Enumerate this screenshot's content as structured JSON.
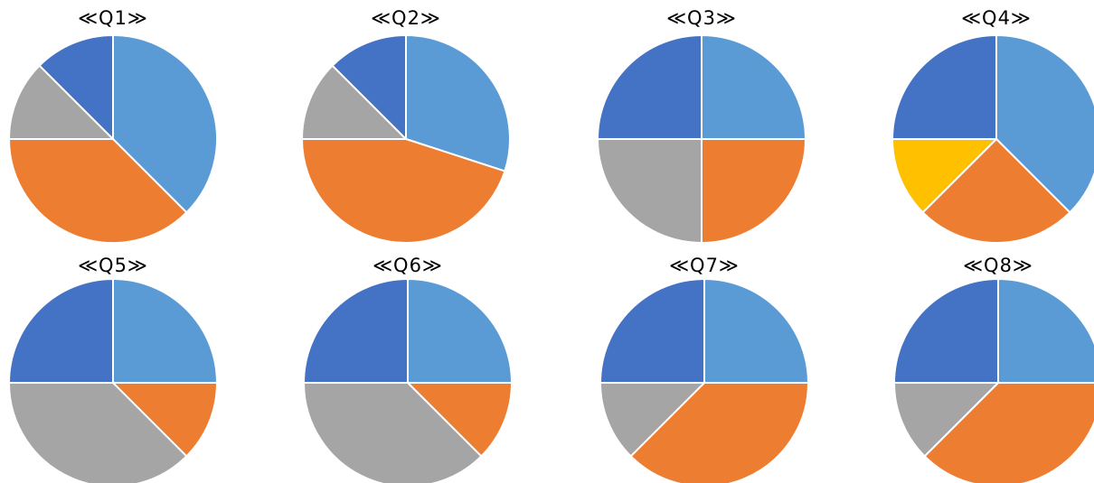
{
  "colors": {
    "blue_light": "#5B9BD5",
    "orange": "#ED7D31",
    "gray": "#A5A5A5",
    "yellow": "#FFC000",
    "blue_dark": "#4472C4",
    "slice_border": "#ffffff"
  },
  "chart_data": [
    {
      "type": "pie",
      "title": "≪Q1≫",
      "series": [
        {
          "values": [
            0.375,
            0.375,
            0.125,
            0,
            0.125
          ],
          "colors": [
            "#5B9BD5",
            "#ED7D31",
            "#A5A5A5",
            "#FFC000",
            "#4472C4"
          ]
        }
      ]
    },
    {
      "type": "pie",
      "title": "≪Q2≫",
      "series": [
        {
          "values": [
            0.3,
            0.45,
            0.125,
            0,
            0.125
          ],
          "colors": [
            "#5B9BD5",
            "#ED7D31",
            "#A5A5A5",
            "#FFC000",
            "#4472C4"
          ]
        }
      ]
    },
    {
      "type": "pie",
      "title": "≪Q3≫",
      "series": [
        {
          "values": [
            0.25,
            0.25,
            0.25,
            0,
            0.25
          ],
          "colors": [
            "#5B9BD5",
            "#ED7D31",
            "#A5A5A5",
            "#FFC000",
            "#4472C4"
          ]
        }
      ]
    },
    {
      "type": "pie",
      "title": "≪Q4≫",
      "series": [
        {
          "values": [
            0.375,
            0.25,
            0,
            0.125,
            0.25
          ],
          "colors": [
            "#5B9BD5",
            "#ED7D31",
            "#A5A5A5",
            "#FFC000",
            "#4472C4"
          ]
        }
      ]
    },
    {
      "type": "pie",
      "title": "≪Q5≫",
      "series": [
        {
          "values": [
            0.25,
            0.125,
            0.375,
            0,
            0.25
          ],
          "colors": [
            "#5B9BD5",
            "#ED7D31",
            "#A5A5A5",
            "#FFC000",
            "#4472C4"
          ]
        }
      ]
    },
    {
      "type": "pie",
      "title": "≪Q6≫",
      "series": [
        {
          "values": [
            0.25,
            0.125,
            0.375,
            0,
            0.25
          ],
          "colors": [
            "#5B9BD5",
            "#ED7D31",
            "#A5A5A5",
            "#FFC000",
            "#4472C4"
          ]
        }
      ]
    },
    {
      "type": "pie",
      "title": "≪Q7≫",
      "series": [
        {
          "values": [
            0.25,
            0.375,
            0.125,
            0,
            0.25
          ],
          "colors": [
            "#5B9BD5",
            "#ED7D31",
            "#A5A5A5",
            "#FFC000",
            "#4472C4"
          ]
        }
      ]
    },
    {
      "type": "pie",
      "title": "≪Q8≫",
      "series": [
        {
          "values": [
            0.25,
            0.375,
            0.125,
            0,
            0.25
          ],
          "colors": [
            "#5B9BD5",
            "#ED7D31",
            "#A5A5A5",
            "#FFC000",
            "#4472C4"
          ]
        }
      ]
    }
  ]
}
